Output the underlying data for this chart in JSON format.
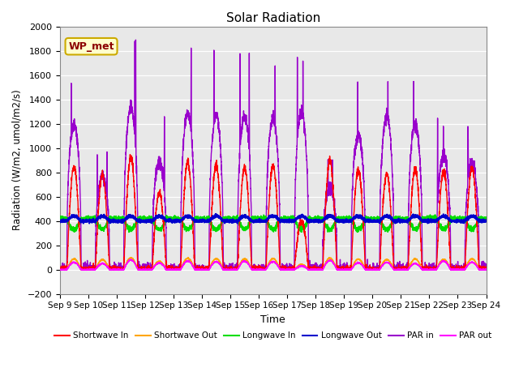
{
  "title": "Solar Radiation",
  "ylabel": "Radiation (W/m2, umol/m2/s)",
  "xlabel": "Time",
  "annotation": "WP_met",
  "ylim": [
    -200,
    2000
  ],
  "plot_bg_color": "#e8e8e8",
  "x_tick_labels": [
    "Sep 9",
    "Sep 10",
    "Sep 11",
    "Sep 12",
    "Sep 13",
    "Sep 14",
    "Sep 15",
    "Sep 16",
    "Sep 17",
    "Sep 18",
    "Sep 19",
    "Sep 20",
    "Sep 21",
    "Sep 22",
    "Sep 23",
    "Sep 24"
  ],
  "yticks": [
    -200,
    0,
    200,
    400,
    600,
    800,
    1000,
    1200,
    1400,
    1600,
    1800,
    2000
  ],
  "series": {
    "shortwave_in": {
      "color": "#ff0000",
      "label": "Shortwave In",
      "linewidth": 1.0,
      "zorder": 4
    },
    "shortwave_out": {
      "color": "#ffa500",
      "label": "Shortwave Out",
      "linewidth": 1.0,
      "zorder": 3
    },
    "longwave_in": {
      "color": "#00dd00",
      "label": "Longwave In",
      "linewidth": 1.2,
      "zorder": 3
    },
    "longwave_out": {
      "color": "#0000cc",
      "label": "Longwave Out",
      "linewidth": 1.5,
      "zorder": 5
    },
    "par_in": {
      "color": "#9900cc",
      "label": "PAR in",
      "linewidth": 1.0,
      "zorder": 2
    },
    "par_out": {
      "color": "#ff00ff",
      "label": "PAR out",
      "linewidth": 1.0,
      "zorder": 6
    }
  },
  "sw_in_peaks": [
    850,
    780,
    920,
    630,
    880,
    860,
    840,
    855,
    400,
    900,
    820,
    790,
    830,
    810,
    840
  ],
  "par_in_peaks": [
    1700,
    1100,
    1900,
    1260,
    1840,
    1810,
    1800,
    1780,
    1850,
    950,
    1580,
    1800,
    1700,
    1330,
    1250
  ],
  "par_out_peaks": [
    60,
    50,
    80,
    55,
    70,
    65,
    70,
    65,
    30,
    75,
    55,
    60,
    50,
    70,
    60
  ]
}
